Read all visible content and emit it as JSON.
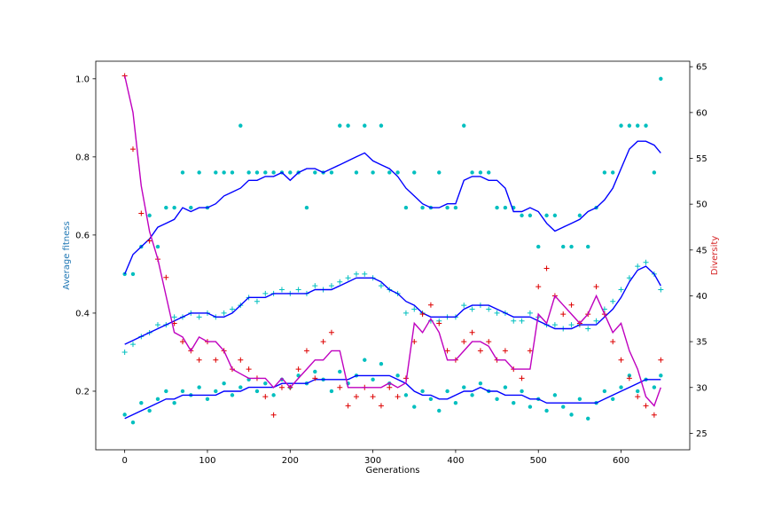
{
  "chart_data": {
    "type": "scatter",
    "xlabel": "Generations",
    "ylabel": "Average fitness",
    "y2label": "Diversity",
    "xlim": [
      -35,
      683
    ],
    "ylim": [
      0.05,
      1.045
    ],
    "y2lim": [
      23.2,
      65.6
    ],
    "x_ticks": [
      0,
      100,
      200,
      300,
      400,
      500,
      600
    ],
    "y_ticks": [
      0.2,
      0.4,
      0.6,
      0.8,
      1.0
    ],
    "y2_ticks": [
      25,
      30,
      35,
      40,
      45,
      50,
      55,
      60,
      65
    ],
    "colors": {
      "fitness_points": "#00bfbf",
      "fitness_lines": "#0000ff",
      "diversity_points": "#dd0000",
      "diversity_line": "#bf00bf",
      "left_axis_label": "#1f77b4",
      "right_axis_label": "#d62728"
    },
    "series": [
      {
        "axis": "left",
        "marker": "dot",
        "x": [
          0,
          10,
          20,
          30,
          40,
          50,
          60,
          70,
          80,
          90,
          100,
          110,
          120,
          130,
          140,
          150,
          160,
          170,
          180,
          190,
          200,
          210,
          220,
          230,
          240,
          250,
          260,
          270,
          280,
          290,
          300,
          310,
          320,
          330,
          340,
          350,
          360,
          370,
          380,
          390,
          400,
          410,
          420,
          430,
          440,
          450,
          460,
          470,
          480,
          490,
          500,
          510,
          520,
          530,
          540,
          550,
          560,
          570,
          580,
          590,
          600,
          610,
          620,
          630,
          640,
          648
        ],
        "y": [
          0.5,
          0.5,
          0.57,
          0.65,
          0.57,
          0.67,
          0.67,
          0.76,
          0.67,
          0.76,
          0.67,
          0.76,
          0.76,
          0.76,
          0.88,
          0.76,
          0.76,
          0.76,
          0.76,
          0.76,
          0.76,
          0.76,
          0.67,
          0.76,
          0.76,
          0.76,
          0.88,
          0.88,
          0.76,
          0.88,
          0.76,
          0.88,
          0.76,
          0.76,
          0.67,
          0.76,
          0.67,
          0.67,
          0.76,
          0.67,
          0.67,
          0.88,
          0.76,
          0.76,
          0.76,
          0.67,
          0.67,
          0.67,
          0.65,
          0.65,
          0.57,
          0.65,
          0.65,
          0.57,
          0.57,
          0.65,
          0.57,
          0.67,
          0.76,
          0.76,
          0.88,
          0.88,
          0.88,
          0.88,
          0.76,
          1.0
        ]
      },
      {
        "axis": "left",
        "marker": "line",
        "x": [
          0,
          10,
          20,
          30,
          40,
          50,
          60,
          70,
          80,
          90,
          100,
          110,
          120,
          130,
          140,
          150,
          160,
          170,
          180,
          190,
          200,
          210,
          220,
          230,
          240,
          250,
          260,
          270,
          280,
          290,
          300,
          310,
          320,
          330,
          340,
          350,
          360,
          370,
          380,
          390,
          400,
          410,
          420,
          430,
          440,
          450,
          460,
          470,
          480,
          490,
          500,
          510,
          520,
          530,
          540,
          550,
          560,
          570,
          580,
          590,
          600,
          610,
          620,
          630,
          640,
          648
        ],
        "y": [
          0.5,
          0.55,
          0.57,
          0.59,
          0.62,
          0.63,
          0.64,
          0.67,
          0.66,
          0.67,
          0.67,
          0.68,
          0.7,
          0.71,
          0.72,
          0.74,
          0.74,
          0.75,
          0.75,
          0.76,
          0.74,
          0.76,
          0.77,
          0.77,
          0.76,
          0.77,
          0.78,
          0.79,
          0.8,
          0.81,
          0.79,
          0.78,
          0.77,
          0.75,
          0.72,
          0.7,
          0.68,
          0.67,
          0.67,
          0.68,
          0.68,
          0.74,
          0.75,
          0.75,
          0.74,
          0.74,
          0.72,
          0.66,
          0.66,
          0.67,
          0.66,
          0.63,
          0.61,
          0.62,
          0.63,
          0.64,
          0.66,
          0.67,
          0.69,
          0.72,
          0.77,
          0.82,
          0.84,
          0.84,
          0.83,
          0.81
        ]
      },
      {
        "axis": "left",
        "marker": "plus",
        "x": [
          0,
          10,
          20,
          30,
          40,
          50,
          60,
          70,
          80,
          90,
          100,
          110,
          120,
          130,
          140,
          150,
          160,
          170,
          180,
          190,
          200,
          210,
          220,
          230,
          240,
          250,
          260,
          270,
          280,
          290,
          300,
          310,
          320,
          330,
          340,
          350,
          360,
          370,
          380,
          390,
          400,
          410,
          420,
          430,
          440,
          450,
          460,
          470,
          480,
          490,
          500,
          510,
          520,
          530,
          540,
          550,
          560,
          570,
          580,
          590,
          600,
          610,
          620,
          630,
          640,
          648
        ],
        "y": [
          0.3,
          0.32,
          0.34,
          0.35,
          0.37,
          0.37,
          0.39,
          0.39,
          0.4,
          0.39,
          0.4,
          0.39,
          0.4,
          0.41,
          0.42,
          0.44,
          0.43,
          0.45,
          0.45,
          0.46,
          0.45,
          0.46,
          0.45,
          0.47,
          0.46,
          0.47,
          0.48,
          0.49,
          0.5,
          0.5,
          0.49,
          0.47,
          0.46,
          0.45,
          0.4,
          0.41,
          0.4,
          0.38,
          0.38,
          0.39,
          0.39,
          0.42,
          0.41,
          0.42,
          0.41,
          0.4,
          0.4,
          0.38,
          0.38,
          0.4,
          0.39,
          0.37,
          0.37,
          0.36,
          0.37,
          0.37,
          0.36,
          0.38,
          0.41,
          0.43,
          0.46,
          0.49,
          0.52,
          0.53,
          0.5,
          0.46
        ]
      },
      {
        "axis": "left",
        "marker": "line",
        "x": [
          0,
          10,
          20,
          30,
          40,
          50,
          60,
          70,
          80,
          90,
          100,
          110,
          120,
          130,
          140,
          150,
          160,
          170,
          180,
          190,
          200,
          210,
          220,
          230,
          240,
          250,
          260,
          270,
          280,
          290,
          300,
          310,
          320,
          330,
          340,
          350,
          360,
          370,
          380,
          390,
          400,
          410,
          420,
          430,
          440,
          450,
          460,
          470,
          480,
          490,
          500,
          510,
          520,
          530,
          540,
          550,
          560,
          570,
          580,
          590,
          600,
          610,
          620,
          630,
          640,
          648
        ],
        "y": [
          0.32,
          0.33,
          0.34,
          0.35,
          0.36,
          0.37,
          0.38,
          0.39,
          0.4,
          0.4,
          0.4,
          0.39,
          0.39,
          0.4,
          0.42,
          0.44,
          0.44,
          0.44,
          0.45,
          0.45,
          0.45,
          0.45,
          0.45,
          0.46,
          0.46,
          0.46,
          0.47,
          0.48,
          0.49,
          0.49,
          0.49,
          0.48,
          0.46,
          0.45,
          0.43,
          0.42,
          0.4,
          0.39,
          0.39,
          0.39,
          0.39,
          0.41,
          0.42,
          0.42,
          0.42,
          0.41,
          0.4,
          0.39,
          0.39,
          0.39,
          0.38,
          0.37,
          0.36,
          0.36,
          0.36,
          0.37,
          0.37,
          0.37,
          0.39,
          0.41,
          0.44,
          0.48,
          0.51,
          0.52,
          0.5,
          0.47
        ]
      },
      {
        "axis": "left",
        "marker": "dot",
        "x": [
          0,
          10,
          20,
          30,
          40,
          50,
          60,
          70,
          80,
          90,
          100,
          110,
          120,
          130,
          140,
          150,
          160,
          170,
          180,
          190,
          200,
          210,
          220,
          230,
          240,
          250,
          260,
          270,
          280,
          290,
          300,
          310,
          320,
          330,
          340,
          350,
          360,
          370,
          380,
          390,
          400,
          410,
          420,
          430,
          440,
          450,
          460,
          470,
          480,
          490,
          500,
          510,
          520,
          530,
          540,
          550,
          560,
          570,
          580,
          590,
          600,
          610,
          620,
          630,
          640,
          648
        ],
        "y": [
          0.14,
          0.12,
          0.17,
          0.15,
          0.18,
          0.2,
          0.17,
          0.2,
          0.19,
          0.21,
          0.18,
          0.2,
          0.22,
          0.19,
          0.21,
          0.23,
          0.2,
          0.22,
          0.19,
          0.23,
          0.21,
          0.24,
          0.22,
          0.25,
          0.23,
          0.2,
          0.25,
          0.22,
          0.24,
          0.28,
          0.23,
          0.27,
          0.22,
          0.24,
          0.19,
          0.16,
          0.2,
          0.18,
          0.15,
          0.2,
          0.17,
          0.21,
          0.19,
          0.22,
          0.2,
          0.18,
          0.21,
          0.17,
          0.2,
          0.16,
          0.18,
          0.15,
          0.19,
          0.16,
          0.14,
          0.18,
          0.13,
          0.17,
          0.2,
          0.18,
          0.21,
          0.24,
          0.2,
          0.23,
          0.21,
          0.24
        ]
      },
      {
        "axis": "left",
        "marker": "line",
        "x": [
          0,
          10,
          20,
          30,
          40,
          50,
          60,
          70,
          80,
          90,
          100,
          110,
          120,
          130,
          140,
          150,
          160,
          170,
          180,
          190,
          200,
          210,
          220,
          230,
          240,
          250,
          260,
          270,
          280,
          290,
          300,
          310,
          320,
          330,
          340,
          350,
          360,
          370,
          380,
          390,
          400,
          410,
          420,
          430,
          440,
          450,
          460,
          470,
          480,
          490,
          500,
          510,
          520,
          530,
          540,
          550,
          560,
          570,
          580,
          590,
          600,
          610,
          620,
          630,
          640,
          648
        ],
        "y": [
          0.13,
          0.14,
          0.15,
          0.16,
          0.17,
          0.18,
          0.18,
          0.19,
          0.19,
          0.19,
          0.19,
          0.19,
          0.2,
          0.2,
          0.2,
          0.21,
          0.21,
          0.21,
          0.21,
          0.22,
          0.22,
          0.22,
          0.22,
          0.23,
          0.23,
          0.23,
          0.23,
          0.23,
          0.24,
          0.24,
          0.24,
          0.24,
          0.24,
          0.23,
          0.22,
          0.2,
          0.19,
          0.19,
          0.18,
          0.18,
          0.19,
          0.2,
          0.2,
          0.21,
          0.2,
          0.2,
          0.19,
          0.19,
          0.19,
          0.18,
          0.18,
          0.17,
          0.17,
          0.17,
          0.17,
          0.17,
          0.17,
          0.17,
          0.18,
          0.19,
          0.2,
          0.21,
          0.22,
          0.23,
          0.23,
          0.23
        ]
      },
      {
        "axis": "right",
        "marker": "plus",
        "x": [
          0,
          10,
          20,
          30,
          40,
          50,
          60,
          70,
          80,
          90,
          100,
          110,
          120,
          130,
          140,
          150,
          160,
          170,
          180,
          190,
          200,
          210,
          220,
          230,
          240,
          250,
          260,
          270,
          280,
          290,
          300,
          310,
          320,
          330,
          340,
          350,
          360,
          370,
          380,
          390,
          400,
          410,
          420,
          430,
          440,
          450,
          460,
          470,
          480,
          490,
          500,
          510,
          520,
          530,
          540,
          550,
          560,
          570,
          580,
          590,
          600,
          610,
          620,
          630,
          640,
          648
        ],
        "y": [
          64,
          56,
          49,
          46,
          44,
          42,
          37,
          35,
          34,
          33,
          35,
          33,
          34,
          32,
          33,
          32,
          31,
          29,
          27,
          30,
          30,
          32,
          34,
          31,
          35,
          36,
          30,
          28,
          29,
          30,
          29,
          28,
          30,
          29,
          31,
          35,
          38,
          39,
          37,
          34,
          33,
          35,
          36,
          34,
          35,
          33,
          34,
          32,
          31,
          34,
          41,
          43,
          40,
          38,
          39,
          37,
          38,
          41,
          38,
          35,
          33,
          31,
          29,
          28,
          27,
          33
        ]
      },
      {
        "axis": "right",
        "marker": "line",
        "x": [
          0,
          10,
          20,
          30,
          40,
          50,
          60,
          70,
          80,
          90,
          100,
          110,
          120,
          130,
          140,
          150,
          160,
          170,
          180,
          190,
          200,
          210,
          220,
          230,
          240,
          250,
          260,
          270,
          280,
          290,
          300,
          310,
          320,
          330,
          340,
          350,
          360,
          370,
          380,
          390,
          400,
          410,
          420,
          430,
          440,
          450,
          460,
          470,
          480,
          490,
          500,
          510,
          520,
          530,
          540,
          550,
          560,
          570,
          580,
          590,
          600,
          610,
          620,
          630,
          640,
          648
        ],
        "y": [
          64,
          60,
          52,
          47,
          44,
          40,
          36,
          35.5,
          34,
          35.5,
          35,
          35,
          34,
          32,
          31.5,
          31,
          31,
          31,
          30,
          31,
          30,
          31,
          32,
          33,
          33,
          34,
          34,
          30,
          30,
          30,
          30,
          30,
          30.5,
          30,
          30.5,
          37,
          36,
          37.5,
          36,
          33,
          33,
          34,
          35,
          35,
          34.5,
          33,
          33,
          32,
          32,
          32,
          38,
          37,
          40,
          39,
          38,
          37,
          38,
          40,
          38,
          36,
          37,
          34,
          32,
          29,
          28,
          30
        ]
      }
    ]
  }
}
